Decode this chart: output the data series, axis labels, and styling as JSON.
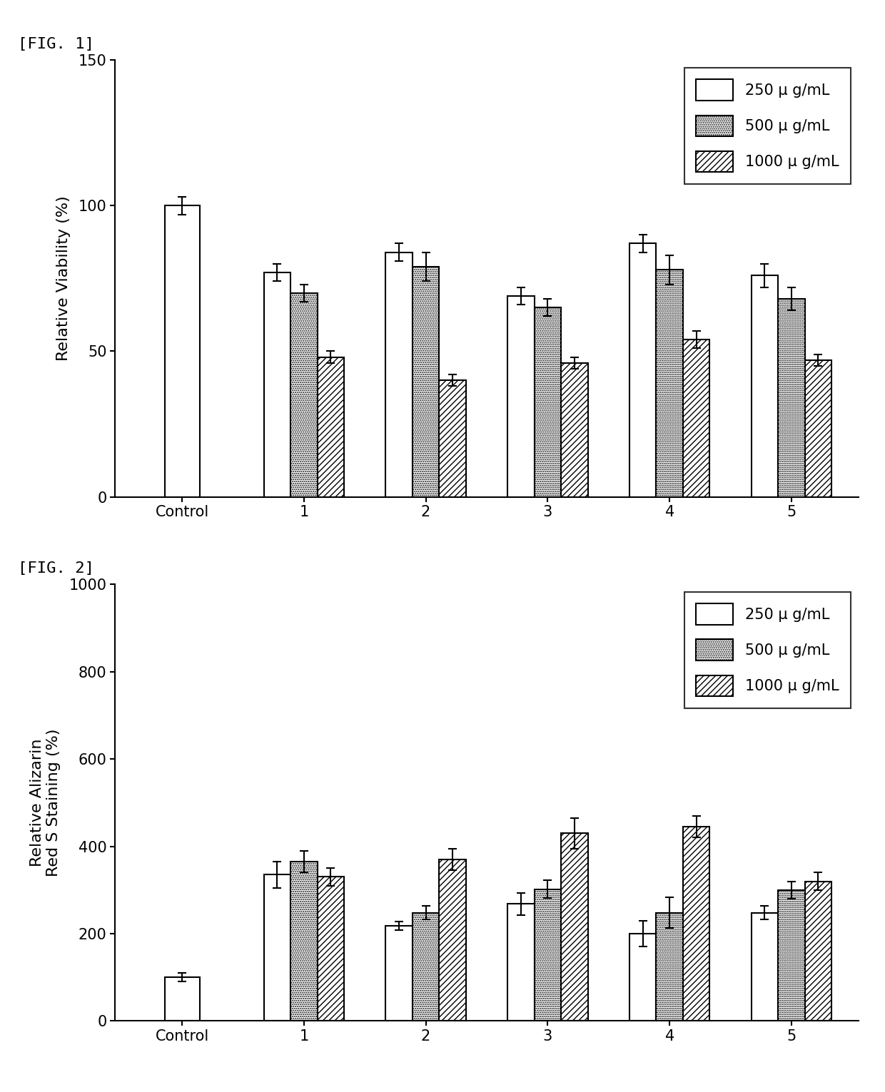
{
  "fig1": {
    "title": "[FIG. 1]",
    "ylabel": "Relative Viability (%)",
    "ylim": [
      0,
      150
    ],
    "yticks": [
      0,
      50,
      100,
      150
    ],
    "categories": [
      "Control",
      "1",
      "2",
      "3",
      "4",
      "5"
    ],
    "bar250": [
      100,
      77,
      84,
      69,
      87,
      76
    ],
    "bar500": [
      null,
      70,
      79,
      65,
      78,
      68
    ],
    "bar1000": [
      null,
      48,
      40,
      46,
      54,
      47
    ],
    "err250": [
      3,
      3,
      3,
      3,
      3,
      4
    ],
    "err500": [
      null,
      3,
      5,
      3,
      5,
      4
    ],
    "err1000": [
      null,
      2,
      2,
      2,
      3,
      2
    ]
  },
  "fig2": {
    "title": "[FIG. 2]",
    "ylabel": "Relative Alizarin\nRed S Staining (%)",
    "ylim": [
      0,
      1000
    ],
    "yticks": [
      0,
      200,
      400,
      600,
      800,
      1000
    ],
    "categories": [
      "Control",
      "1",
      "2",
      "3",
      "4",
      "5"
    ],
    "bar250": [
      100,
      335,
      218,
      268,
      200,
      248
    ],
    "bar500": [
      null,
      365,
      248,
      302,
      248,
      300
    ],
    "bar1000": [
      null,
      330,
      370,
      430,
      445,
      320
    ],
    "err250": [
      10,
      30,
      10,
      25,
      30,
      15
    ],
    "err500": [
      null,
      25,
      15,
      20,
      35,
      20
    ],
    "err1000": [
      null,
      20,
      25,
      35,
      25,
      20
    ]
  },
  "legend_labels": [
    "250 μ g/mL",
    "500 μ g/mL",
    "1000 μ g/mL"
  ],
  "bar_width": 0.22,
  "background_color": "#ffffff",
  "font_size": 16,
  "label_font_size": 15,
  "tick_font_size": 15
}
